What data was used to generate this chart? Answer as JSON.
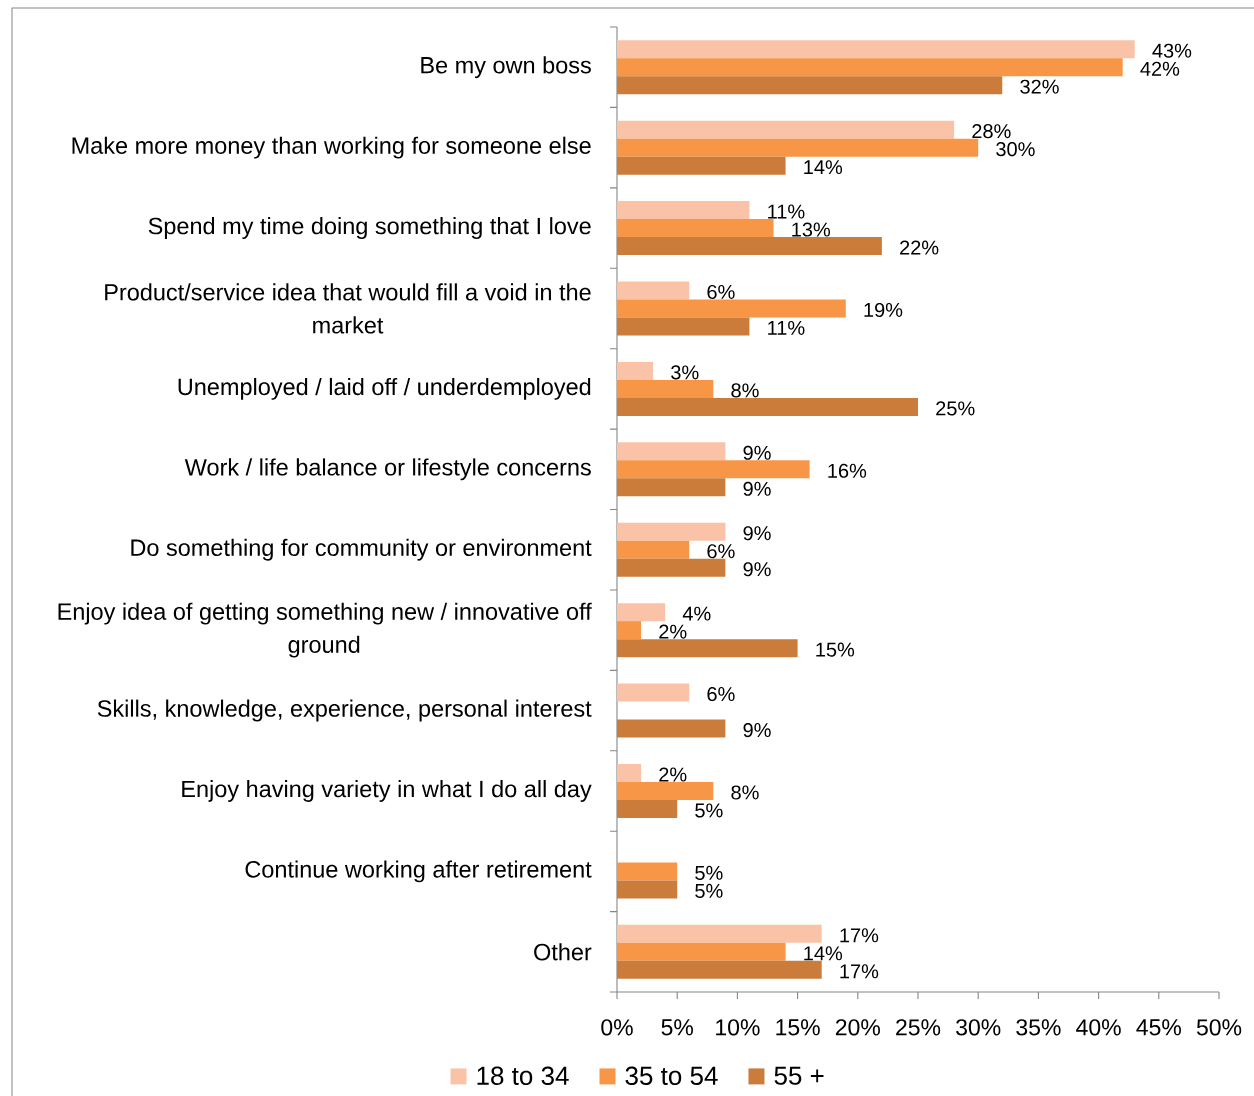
{
  "chart_data": {
    "type": "bar",
    "orientation": "horizontal",
    "categories": [
      "Be my own boss",
      "Make more money than working for someone else",
      "Spend my time doing something that I love",
      "Product/service idea that would fill a void in the market",
      "Unemployed / laid off / underdemployed",
      "Work / life balance or lifestyle concerns",
      "Do something for community or environment",
      "Enjoy idea of getting something new / innovative off ground",
      "Skills, knowledge, experience, personal interest",
      "Enjoy having variety in what I do all day",
      "Continue working after retirement",
      "Other"
    ],
    "series": [
      {
        "name": "18 to 34",
        "color": "#fac3a8",
        "values": [
          43,
          28,
          11,
          6,
          3,
          9,
          9,
          4,
          6,
          2,
          null,
          17
        ],
        "value_labels": [
          "43%",
          "28%",
          "11%",
          "6%",
          "3%",
          "9%",
          "9%",
          "4%",
          "6%",
          "2%",
          null,
          "17%"
        ]
      },
      {
        "name": "35 to 54",
        "color": "#f79646",
        "values": [
          42,
          30,
          13,
          19,
          8,
          16,
          6,
          2,
          null,
          8,
          5,
          14
        ],
        "value_labels": [
          "42%",
          "30%",
          "13%",
          "19%",
          "8%",
          "16%",
          "6%",
          "2%",
          null,
          "8%",
          "5%",
          "14%"
        ]
      },
      {
        "name": "55 +",
        "color": "#cb7b3a",
        "values": [
          32,
          14,
          22,
          11,
          25,
          9,
          9,
          15,
          9,
          5,
          5,
          17
        ],
        "value_labels": [
          "32%",
          "14%",
          "22%",
          "11%",
          "25%",
          "9%",
          "9%",
          "15%",
          "9%",
          "5%",
          "5%",
          "17%"
        ]
      }
    ],
    "xlim": [
      0,
      50
    ],
    "xticks": [
      {
        "value": 0,
        "label": "0%"
      },
      {
        "value": 5,
        "label": "5%"
      },
      {
        "value": 10,
        "label": "10%"
      },
      {
        "value": 15,
        "label": "15%"
      },
      {
        "value": 20,
        "label": "20%"
      },
      {
        "value": 25,
        "label": "25%"
      },
      {
        "value": 30,
        "label": "30%"
      },
      {
        "value": 35,
        "label": "35%"
      },
      {
        "value": 40,
        "label": "40%"
      },
      {
        "value": 45,
        "label": "45%"
      },
      {
        "value": 50,
        "label": "50%"
      }
    ],
    "legend": "bottom"
  }
}
